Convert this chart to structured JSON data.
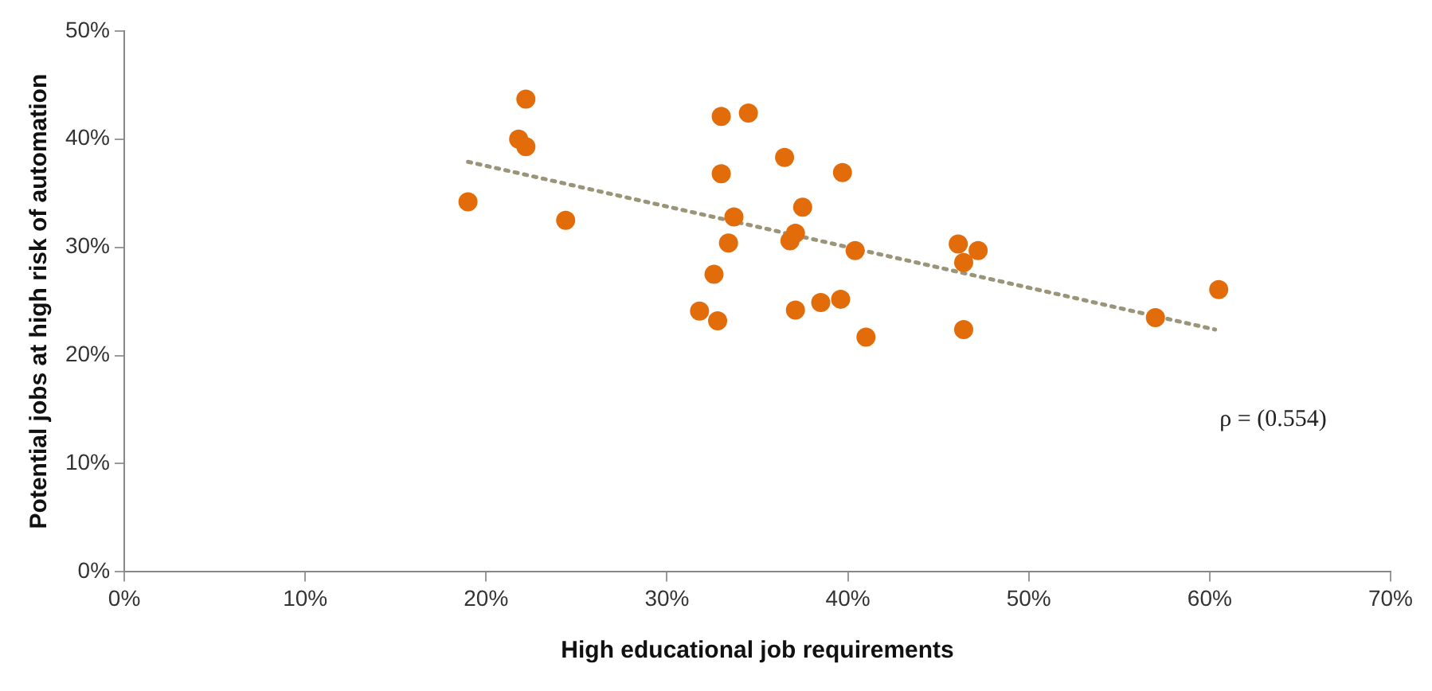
{
  "chart_data": {
    "type": "scatter",
    "xlabel": "High educational job requirements",
    "ylabel": "Potential jobs at high risk of automation",
    "xlim": [
      0,
      70
    ],
    "ylim": [
      0,
      50
    ],
    "xticks": [
      {
        "value": 0,
        "label": "0%"
      },
      {
        "value": 10,
        "label": "10%"
      },
      {
        "value": 20,
        "label": "20%"
      },
      {
        "value": 30,
        "label": "30%"
      },
      {
        "value": 40,
        "label": "40%"
      },
      {
        "value": 50,
        "label": "50%"
      },
      {
        "value": 60,
        "label": "60%"
      },
      {
        "value": 70,
        "label": "70%"
      }
    ],
    "yticks": [
      {
        "value": 0,
        "label": "0%"
      },
      {
        "value": 10,
        "label": "10%"
      },
      {
        "value": 20,
        "label": "20%"
      },
      {
        "value": 30,
        "label": "30%"
      },
      {
        "value": 40,
        "label": "40%"
      },
      {
        "value": 50,
        "label": "50%"
      }
    ],
    "grid": false,
    "legend": false,
    "marker": "circle",
    "annotations": [
      "ρ = (0.554)"
    ],
    "series": [
      {
        "color": "#e36c0a",
        "x": [
          19.0,
          24.4,
          22.2,
          21.8,
          22.2,
          33.0,
          34.5,
          33.0,
          36.5,
          39.7,
          33.7,
          37.5,
          33.4,
          37.1,
          36.8,
          40.4,
          32.6,
          31.8,
          32.8,
          37.1,
          38.5,
          39.6,
          41.0,
          46.1,
          46.4,
          47.2,
          46.4,
          57.0,
          60.5
        ],
        "values": [
          34.2,
          32.5,
          43.7,
          40.0,
          39.3,
          42.1,
          42.4,
          36.8,
          38.3,
          36.9,
          32.8,
          33.7,
          30.4,
          31.3,
          30.6,
          29.7,
          27.5,
          24.1,
          23.2,
          24.2,
          24.9,
          25.2,
          21.7,
          30.3,
          28.6,
          29.7,
          22.4,
          23.5,
          26.1
        ]
      },
      {
        "type": "line",
        "color": "#9a9478",
        "line_style": "dotted",
        "marker": "none",
        "x": [
          19.0,
          60.3
        ],
        "values": [
          37.9,
          22.4
        ]
      }
    ]
  }
}
